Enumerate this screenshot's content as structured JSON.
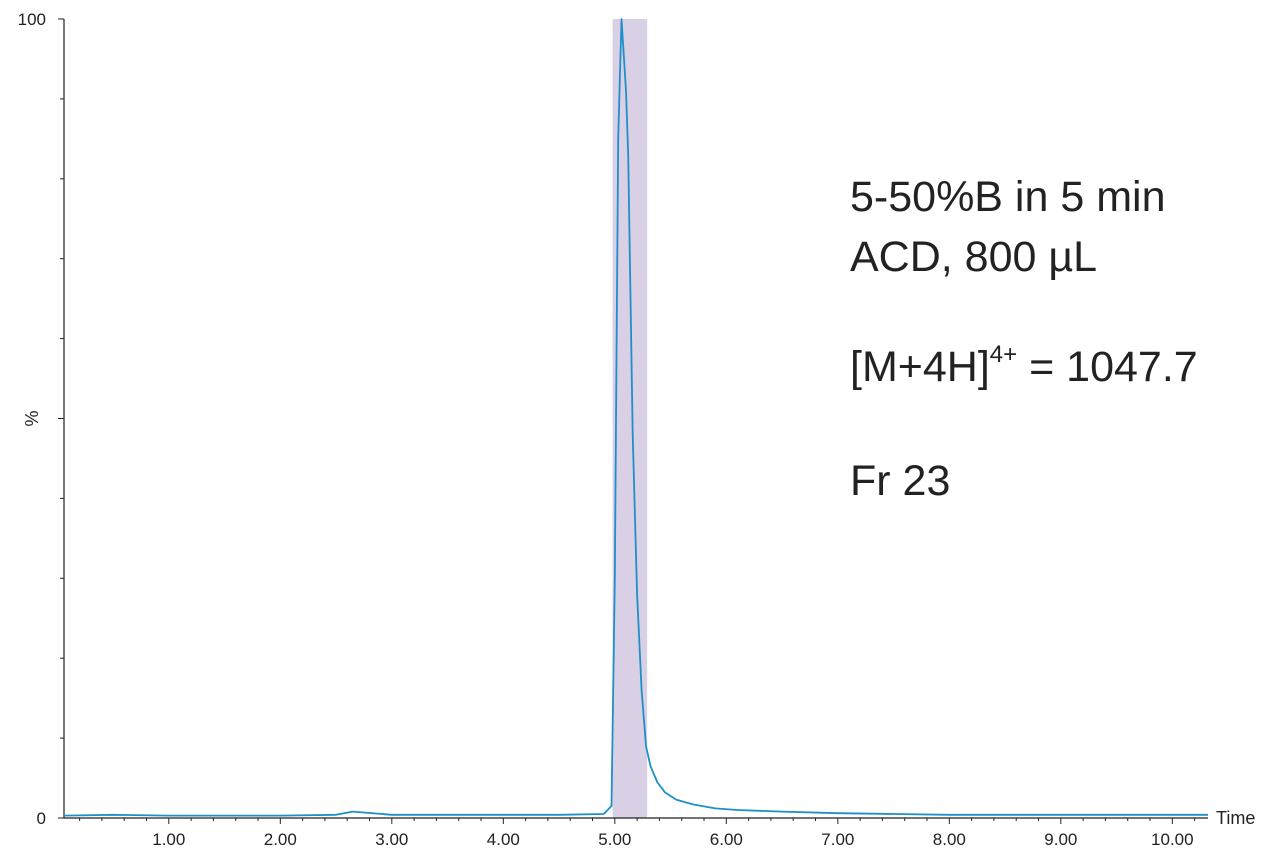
{
  "chart_data": {
    "type": "line",
    "title": "",
    "xlabel": "Time",
    "ylabel": "%",
    "xlim": [
      0.06,
      10.32
    ],
    "ylim": [
      0,
      100
    ],
    "x_ticks": [
      1.0,
      2.0,
      3.0,
      4.0,
      5.0,
      6.0,
      7.0,
      8.0,
      9.0,
      10.0
    ],
    "x_tick_labels": [
      "1.00",
      "2.00",
      "3.00",
      "4.00",
      "5.00",
      "6.00",
      "7.00",
      "8.00",
      "9.00",
      "10.00"
    ],
    "y_tick_labels": [
      "0",
      "100"
    ],
    "y_ticks": [
      0,
      100
    ],
    "grid": false,
    "highlight_region": {
      "x_start": 4.98,
      "x_end": 5.29,
      "color": "#d9d0e6"
    },
    "series": [
      {
        "color": "#1f8fc7",
        "x": [
          0.06,
          0.5,
          1.0,
          1.5,
          2.0,
          2.5,
          2.65,
          3.0,
          3.5,
          4.0,
          4.5,
          4.9,
          4.97,
          5.0,
          5.03,
          5.06,
          5.1,
          5.12,
          5.16,
          5.2,
          5.24,
          5.28,
          5.32,
          5.38,
          5.45,
          5.55,
          5.7,
          5.9,
          6.1,
          6.5,
          7.0,
          7.5,
          8.0,
          8.5,
          9.0,
          9.5,
          10.0,
          10.32
        ],
        "y": [
          0.3,
          0.4,
          0.3,
          0.3,
          0.3,
          0.4,
          0.8,
          0.4,
          0.4,
          0.4,
          0.4,
          0.5,
          1.5,
          30,
          85,
          100,
          91,
          83,
          48,
          28,
          16,
          9,
          6.5,
          4.5,
          3.2,
          2.3,
          1.7,
          1.2,
          1.0,
          0.8,
          0.6,
          0.5,
          0.4,
          0.4,
          0.4,
          0.4,
          0.4,
          0.4
        ]
      }
    ]
  },
  "annotations": {
    "line1": "5-50%B in 5 min",
    "line2": "ACD, 800 µL",
    "ion_prefix": "[M+4H]",
    "ion_charge": "4+",
    "ion_value": " = 1047.7",
    "fraction": "Fr 23"
  }
}
